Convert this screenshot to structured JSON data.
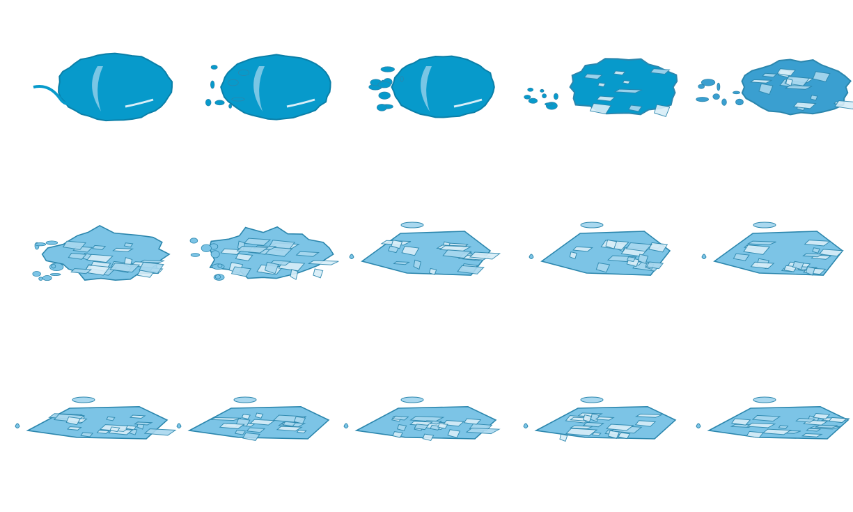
{
  "sprite_sheet": {
    "description_visible_text": "",
    "rows": 3,
    "columns": 5,
    "frame_count": 15,
    "colors": {
      "background": "#ffffff",
      "water_fill": "#079acb",
      "water_outline": "#0a7fa8",
      "ice_fill": "#7cc4e6",
      "ice_light": "#d8eef8",
      "ice_mid": "#a9d8ef",
      "ice_outline": "#2b86ad"
    },
    "frames": [
      {
        "id": "frame-01",
        "stage": "water-blob"
      },
      {
        "id": "frame-02",
        "stage": "water-blob"
      },
      {
        "id": "frame-03",
        "stage": "water-blob"
      },
      {
        "id": "frame-04",
        "stage": "freezing"
      },
      {
        "id": "frame-05",
        "stage": "freezing"
      },
      {
        "id": "frame-06",
        "stage": "ice-shards"
      },
      {
        "id": "frame-07",
        "stage": "ice-shards"
      },
      {
        "id": "frame-08",
        "stage": "ice-slab"
      },
      {
        "id": "frame-09",
        "stage": "ice-slab"
      },
      {
        "id": "frame-10",
        "stage": "ice-slab"
      },
      {
        "id": "frame-11",
        "stage": "ice-flat"
      },
      {
        "id": "frame-12",
        "stage": "ice-flat"
      },
      {
        "id": "frame-13",
        "stage": "ice-flat"
      },
      {
        "id": "frame-14",
        "stage": "ice-flat"
      },
      {
        "id": "frame-15",
        "stage": "ice-flat"
      }
    ]
  }
}
